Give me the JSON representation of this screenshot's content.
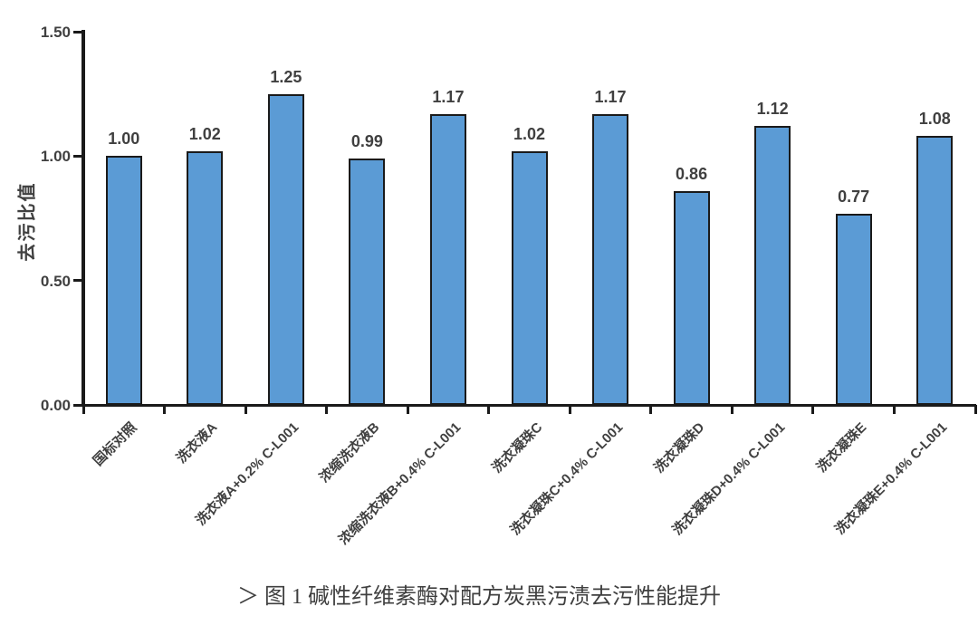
{
  "chart_data": {
    "type": "bar",
    "title": "",
    "xlabel": "",
    "ylabel": "去污比值",
    "ylim": [
      0,
      1.5
    ],
    "grid": false,
    "legend": "none",
    "yticks": [
      {
        "value": 0.0,
        "label": "0.00"
      },
      {
        "value": 0.5,
        "label": "0.50"
      },
      {
        "value": 1.0,
        "label": "1.00"
      },
      {
        "value": 1.5,
        "label": "1.50"
      }
    ],
    "categories": [
      "国标对照",
      "洗衣液A",
      "洗衣液A+0.2% C-L001",
      "浓缩洗衣液B",
      "浓缩洗衣液B+0.4% C-L001",
      "洗衣凝珠C",
      "洗衣凝珠C+0.4% C-L001",
      "洗衣凝珠D",
      "洗衣凝珠D+0.4% C-L001",
      "洗衣凝珠E",
      "洗衣凝珠E+0.4% C-L001"
    ],
    "values": [
      1.0,
      1.02,
      1.25,
      0.99,
      1.17,
      1.02,
      1.17,
      0.86,
      1.12,
      0.77,
      1.08
    ],
    "value_labels": [
      "1.00",
      "1.02",
      "1.25",
      "0.99",
      "1.17",
      "1.02",
      "1.17",
      "0.86",
      "1.12",
      "0.77",
      "1.08"
    ],
    "colors": {
      "bar_fill": "#5B9BD5",
      "bar_border": "#1a1a1a",
      "axis": "#1a1a1a",
      "text": "#404040"
    }
  },
  "caption": {
    "text": "＞ 图 1 碱性纤维素酶对配方炭黑污渍去污性能提升"
  }
}
